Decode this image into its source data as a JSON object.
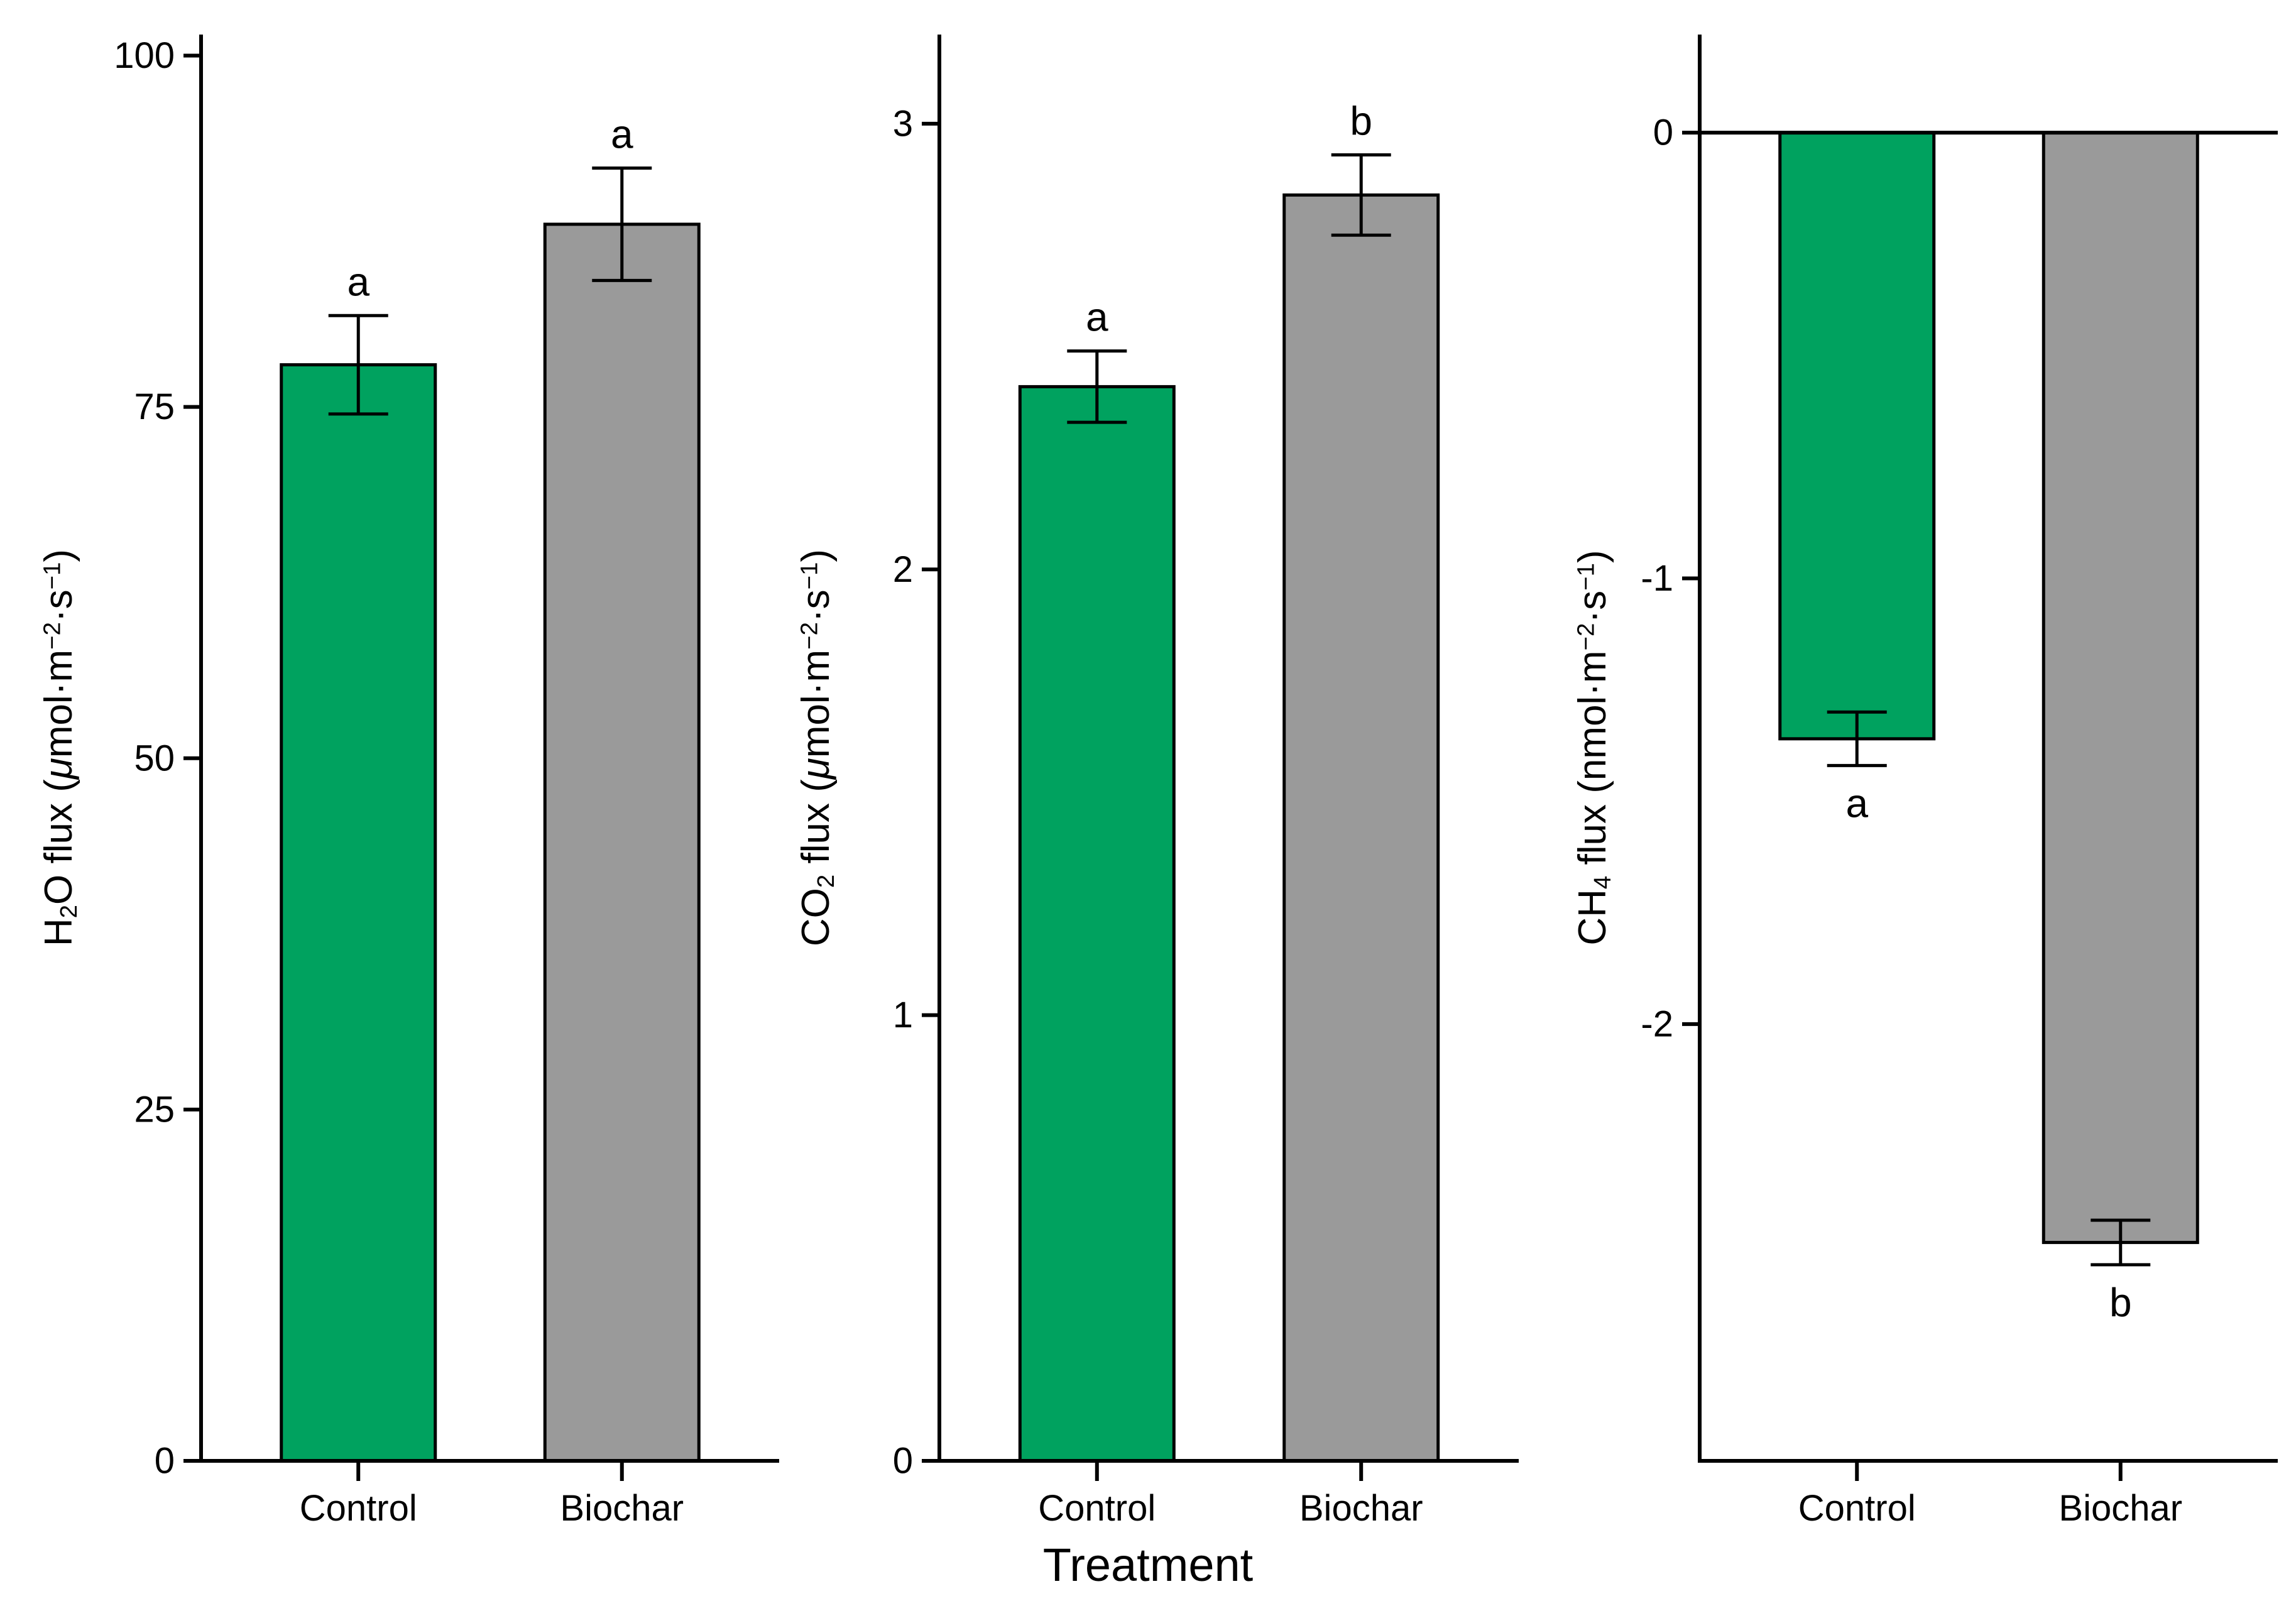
{
  "figure": {
    "background": "#ffffff",
    "xlabel": "Treatment",
    "axis_color": "#000000",
    "bar_outline_color": "#000000",
    "control_fill": "#00A25F",
    "biochar_fill": "#9A9A9A"
  },
  "chart_data": [
    {
      "type": "bar",
      "panel": "h2o-flux",
      "title": "",
      "ylabel": "H₂O flux (μmol·m⁻²·s⁻¹)",
      "xlabel": "Treatment",
      "categories": [
        "Control",
        "Biochar"
      ],
      "values": [
        78,
        88
      ],
      "errors": [
        3.5,
        4
      ],
      "sig_letters": [
        "a",
        "a"
      ],
      "letter_position": "above",
      "yticks": [
        0,
        25,
        50,
        75,
        100
      ],
      "ylim": [
        0,
        101.5
      ],
      "bar_colors": [
        "#00A25F",
        "#9A9A9A"
      ],
      "grid": false,
      "legend": false
    },
    {
      "type": "bar",
      "panel": "co2-flux",
      "title": "",
      "ylabel": "CO₂ flux (μmol·m⁻²·s⁻¹)",
      "xlabel": "Treatment",
      "categories": [
        "Control",
        "Biochar"
      ],
      "values": [
        2.41,
        2.84
      ],
      "errors": [
        0.08,
        0.09
      ],
      "sig_letters": [
        "a",
        "b"
      ],
      "letter_position": "above",
      "yticks": [
        0,
        1,
        2,
        3
      ],
      "ylim": [
        0,
        3.2
      ],
      "bar_colors": [
        "#00A25F",
        "#9A9A9A"
      ],
      "grid": false,
      "legend": false
    },
    {
      "type": "bar",
      "panel": "ch4-flux",
      "title": "",
      "ylabel": "CH₄ flux (nmol·m⁻²·s⁻¹)",
      "xlabel": "Treatment",
      "categories": [
        "Control",
        "Biochar"
      ],
      "values": [
        -1.36,
        -2.49
      ],
      "errors": [
        0.06,
        0.05
      ],
      "sig_letters": [
        "a",
        "b"
      ],
      "letter_position": "below",
      "yticks": [
        0,
        -1,
        -2
      ],
      "ylim": [
        -2.98,
        0.22
      ],
      "zero_line": true,
      "bar_colors": [
        "#00A25F",
        "#9A9A9A"
      ],
      "grid": false,
      "legend": false
    }
  ]
}
